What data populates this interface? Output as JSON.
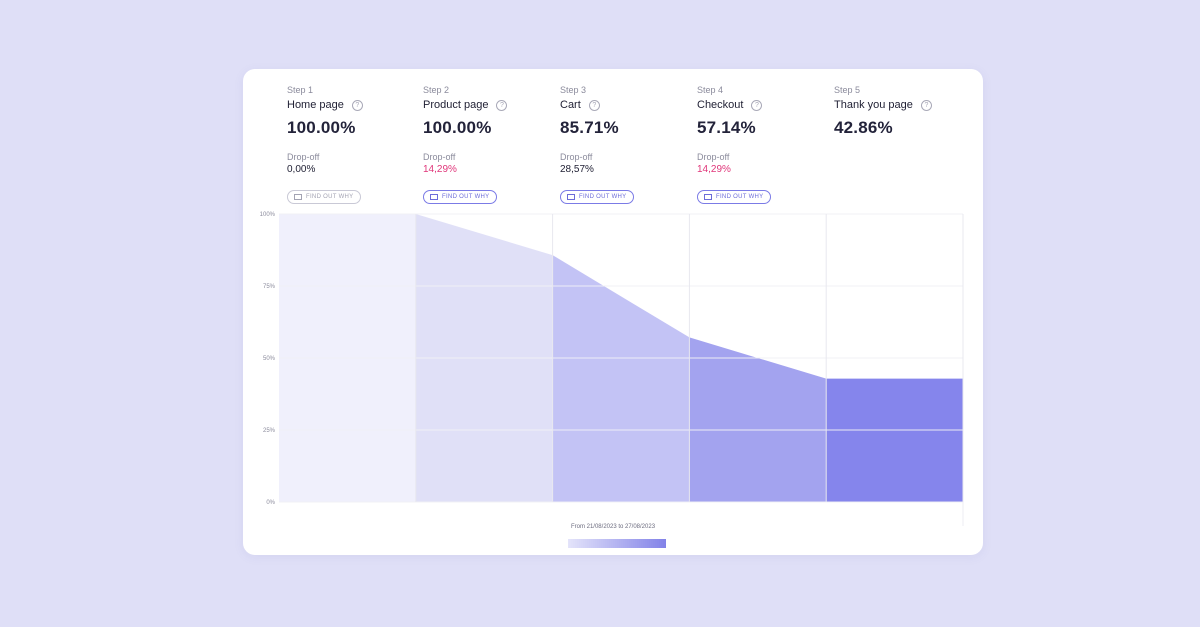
{
  "steps": [
    {
      "label": "Step 1",
      "name": "Home page",
      "percent": "100.00%",
      "dropoff_label": "Drop-off",
      "dropoff": "0,00%",
      "dropoff_bad": false,
      "button": "FIND OUT WHY",
      "button_muted": true
    },
    {
      "label": "Step 2",
      "name": "Product page",
      "percent": "100.00%",
      "dropoff_label": "Drop-off",
      "dropoff": "14,29%",
      "dropoff_bad": true,
      "button": "FIND OUT WHY",
      "button_muted": false
    },
    {
      "label": "Step 3",
      "name": "Cart",
      "percent": "85.71%",
      "dropoff_label": "Drop-off",
      "dropoff": "28,57%",
      "dropoff_bad": false,
      "button": "FIND OUT WHY",
      "button_muted": false
    },
    {
      "label": "Step 4",
      "name": "Checkout",
      "percent": "57.14%",
      "dropoff_label": "Drop-off",
      "dropoff": "14,29%",
      "dropoff_bad": true,
      "button": "FIND OUT WHY",
      "button_muted": false
    },
    {
      "label": "Step 5",
      "name": "Thank you page",
      "percent": "42.86%"
    }
  ],
  "chart_data": {
    "type": "area",
    "categories": [
      "Home page",
      "Product page",
      "Cart",
      "Checkout",
      "Thank you page"
    ],
    "values": [
      100,
      100,
      85.71,
      57.14,
      42.86
    ],
    "yticks": [
      "0%",
      "25%",
      "50%",
      "75%",
      "100%"
    ],
    "ylim": [
      0,
      100
    ],
    "colors": [
      "#f0f0fc",
      "#e0e0f7",
      "#c3c3f5",
      "#a3a3ef",
      "#8585ec"
    ],
    "date_range": "From 21/08/2023 to 27/08/2023"
  }
}
